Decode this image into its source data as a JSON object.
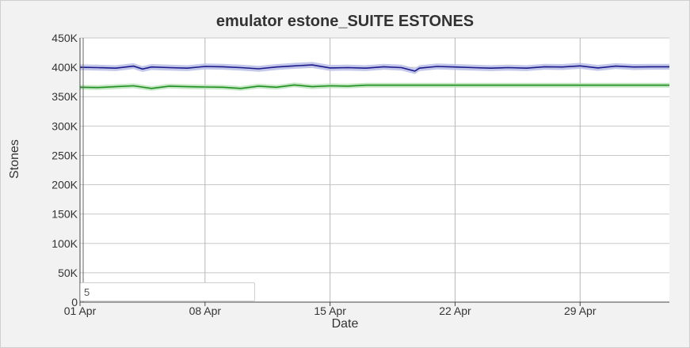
{
  "chart_data": {
    "type": "line",
    "title": "emulator estone_SUITE ESTONES",
    "xlabel": "Date",
    "ylabel": "Stones",
    "ylim": [
      0,
      450000
    ],
    "xlim": [
      "2024-04-01",
      "2024-05-04"
    ],
    "grid": true,
    "yticks": [
      {
        "value": 0,
        "label": "0"
      },
      {
        "value": 50000,
        "label": "50K"
      },
      {
        "value": 100000,
        "label": "100K"
      },
      {
        "value": 150000,
        "label": "150K"
      },
      {
        "value": 200000,
        "label": "200K"
      },
      {
        "value": 250000,
        "label": "250K"
      },
      {
        "value": 300000,
        "label": "300K"
      },
      {
        "value": 350000,
        "label": "350K"
      },
      {
        "value": 400000,
        "label": "400K"
      },
      {
        "value": 450000,
        "label": "450K"
      }
    ],
    "xticks": [
      {
        "value": "2024-04-01",
        "label": "01 Apr"
      },
      {
        "value": "2024-04-08",
        "label": "08 Apr"
      },
      {
        "value": "2024-04-15",
        "label": "15 Apr"
      },
      {
        "value": "2024-04-22",
        "label": "22 Apr"
      },
      {
        "value": "2024-04-29",
        "label": "29 Apr"
      }
    ],
    "series": [
      {
        "color": "#1a1a8c",
        "band_color": "#b8bde6",
        "band": 5000,
        "points": [
          [
            "2024-04-01",
            400000
          ],
          [
            "2024-04-02",
            399500
          ],
          [
            "2024-04-03",
            398500
          ],
          [
            "2024-04-04",
            402000
          ],
          [
            "2024-04-04T12:00",
            397000
          ],
          [
            "2024-04-05",
            400500
          ],
          [
            "2024-04-06",
            399500
          ],
          [
            "2024-04-07",
            398500
          ],
          [
            "2024-04-08",
            401500
          ],
          [
            "2024-04-09",
            401000
          ],
          [
            "2024-04-10",
            399500
          ],
          [
            "2024-04-11",
            397500
          ],
          [
            "2024-04-12",
            400500
          ],
          [
            "2024-04-13",
            402500
          ],
          [
            "2024-04-14",
            404000
          ],
          [
            "2024-04-15",
            399000
          ],
          [
            "2024-04-16",
            399500
          ],
          [
            "2024-04-17",
            398500
          ],
          [
            "2024-04-18",
            401000
          ],
          [
            "2024-04-19",
            399500
          ],
          [
            "2024-04-19T18:00",
            393500
          ],
          [
            "2024-04-20",
            398500
          ],
          [
            "2024-04-21",
            401500
          ],
          [
            "2024-04-22",
            400500
          ],
          [
            "2024-04-23",
            399500
          ],
          [
            "2024-04-24",
            398500
          ],
          [
            "2024-04-25",
            399500
          ],
          [
            "2024-04-26",
            398500
          ],
          [
            "2024-04-27",
            401000
          ],
          [
            "2024-04-28",
            400500
          ],
          [
            "2024-04-29",
            402500
          ],
          [
            "2024-04-30",
            399000
          ],
          [
            "2024-05-01",
            402000
          ],
          [
            "2024-05-02",
            400500
          ],
          [
            "2024-05-03",
            401000
          ],
          [
            "2024-05-04",
            401000
          ]
        ]
      },
      {
        "color": "#1f8f1f",
        "band_color": "#b9e2b9",
        "band": 4000,
        "points": [
          [
            "2024-04-01",
            366000
          ],
          [
            "2024-04-02",
            365500
          ],
          [
            "2024-04-03",
            367000
          ],
          [
            "2024-04-04",
            368500
          ],
          [
            "2024-04-05",
            364000
          ],
          [
            "2024-04-06",
            368000
          ],
          [
            "2024-04-07",
            367000
          ],
          [
            "2024-04-08",
            366500
          ],
          [
            "2024-04-09",
            366000
          ],
          [
            "2024-04-10",
            364000
          ],
          [
            "2024-04-11",
            368000
          ],
          [
            "2024-04-12",
            366000
          ],
          [
            "2024-04-13",
            370000
          ],
          [
            "2024-04-14",
            367000
          ],
          [
            "2024-04-15",
            368500
          ],
          [
            "2024-04-16",
            368000
          ],
          [
            "2024-04-17",
            369500
          ],
          [
            "2024-04-20",
            369500
          ],
          [
            "2024-04-25",
            369500
          ],
          [
            "2024-04-30",
            369500
          ],
          [
            "2024-05-04",
            369500
          ]
        ]
      }
    ]
  },
  "controls": {
    "rolling_window_value": "5"
  }
}
